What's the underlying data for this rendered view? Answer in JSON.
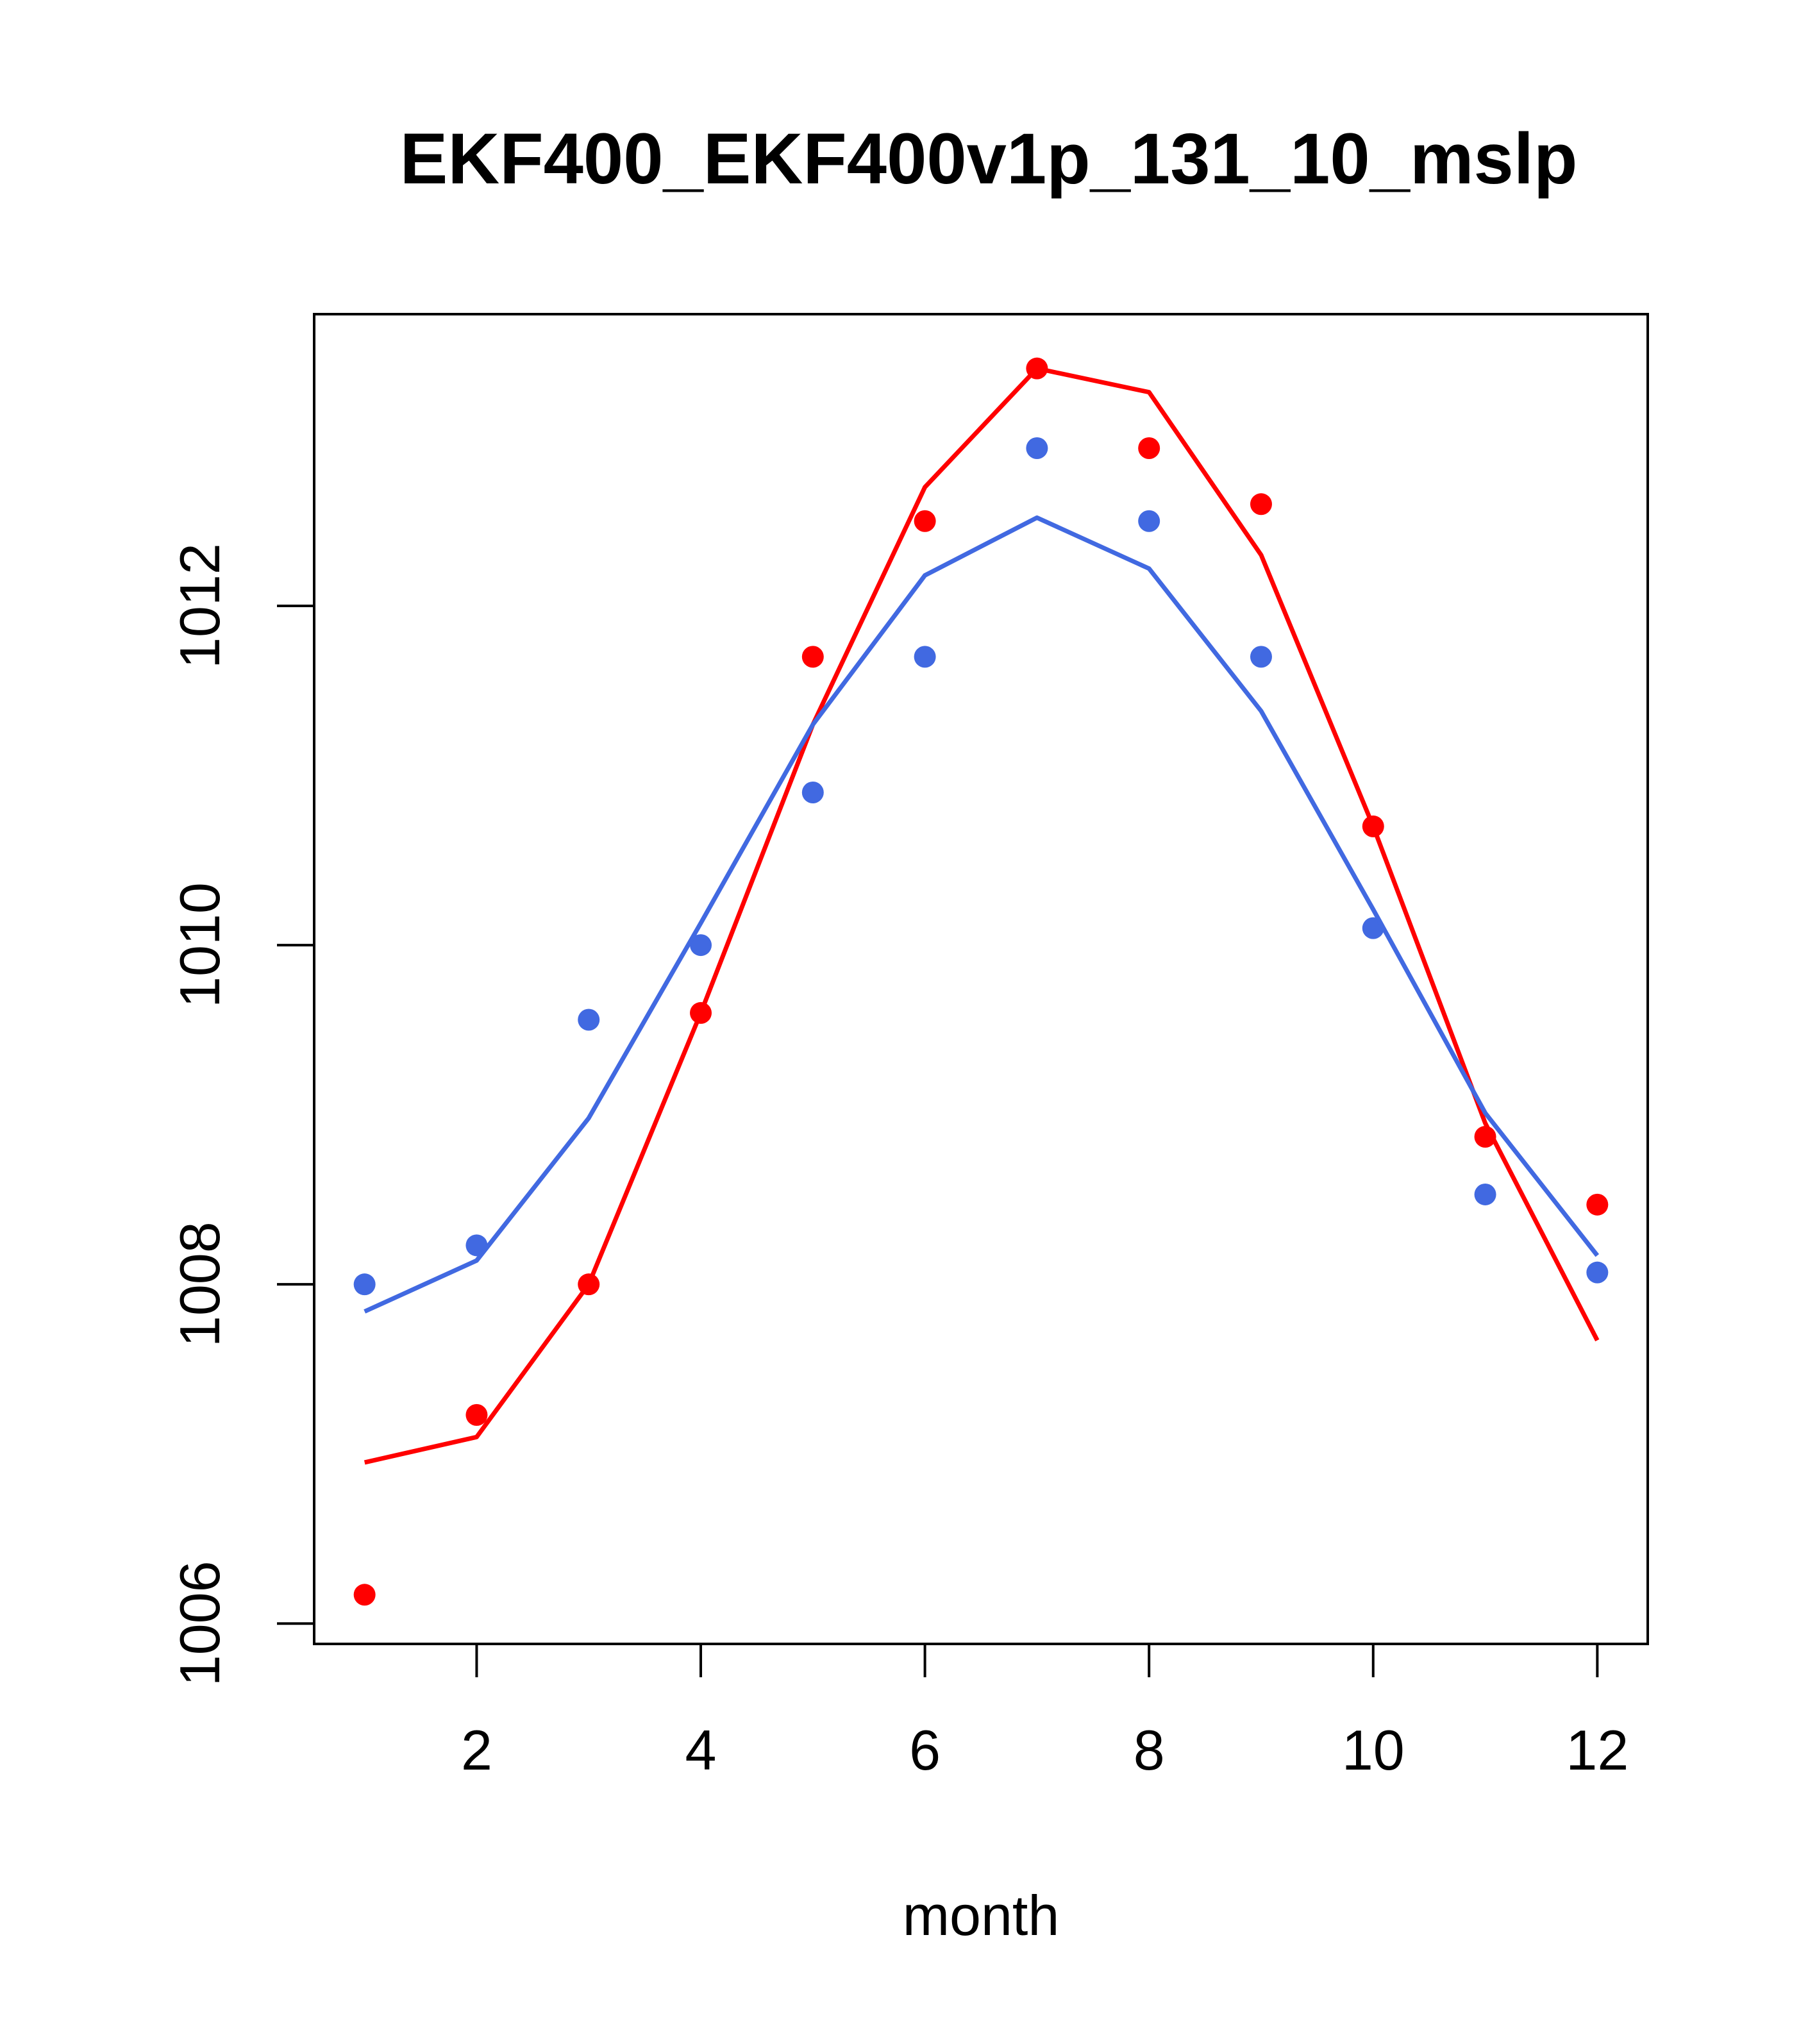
{
  "chart_data": {
    "type": "line",
    "title": "EKF400_EKF400v1p_131_10_mslp",
    "xlabel": "month",
    "ylabel": "",
    "xlim": [
      0.55,
      12.45
    ],
    "ylim": [
      1005.88,
      1013.72
    ],
    "x_ticks": [
      2,
      4,
      6,
      8,
      10,
      12
    ],
    "x_tick_labels": [
      "2",
      "4",
      "6",
      "8",
      "10",
      "12"
    ],
    "y_ticks": [
      1006,
      1008,
      1010,
      1012
    ],
    "y_tick_labels": [
      "1006",
      "1008",
      "1010",
      "1012"
    ],
    "grid": false,
    "legend": "none",
    "x": [
      1,
      2,
      3,
      4,
      5,
      6,
      7,
      8,
      9,
      10,
      11,
      12
    ],
    "series": [
      {
        "name": "red-points",
        "kind": "points",
        "color": "#ff0000",
        "values": [
          1006.17,
          1007.23,
          1008.0,
          1009.6,
          1011.7,
          1012.5,
          1013.4,
          1012.93,
          1012.6,
          1010.7,
          1008.87,
          1008.47
        ]
      },
      {
        "name": "red-fit",
        "kind": "line",
        "color": "#ff0000",
        "values": [
          1006.95,
          1007.1,
          1008.0,
          1009.6,
          1011.3,
          1012.7,
          1013.4,
          1013.26,
          1012.3,
          1010.7,
          1008.95,
          1007.67
        ]
      },
      {
        "name": "blue-points",
        "kind": "points",
        "color": "#4169e1",
        "values": [
          1008.0,
          1008.23,
          1009.56,
          1010.0,
          1010.9,
          1011.7,
          1012.93,
          1012.5,
          1011.7,
          1010.1,
          1008.53,
          1008.07
        ]
      },
      {
        "name": "blue-fit",
        "kind": "line",
        "color": "#4169e1",
        "values": [
          1007.84,
          1008.14,
          1008.98,
          1010.13,
          1011.3,
          1012.18,
          1012.52,
          1012.22,
          1011.38,
          1010.21,
          1009.01,
          1008.17
        ]
      }
    ]
  }
}
